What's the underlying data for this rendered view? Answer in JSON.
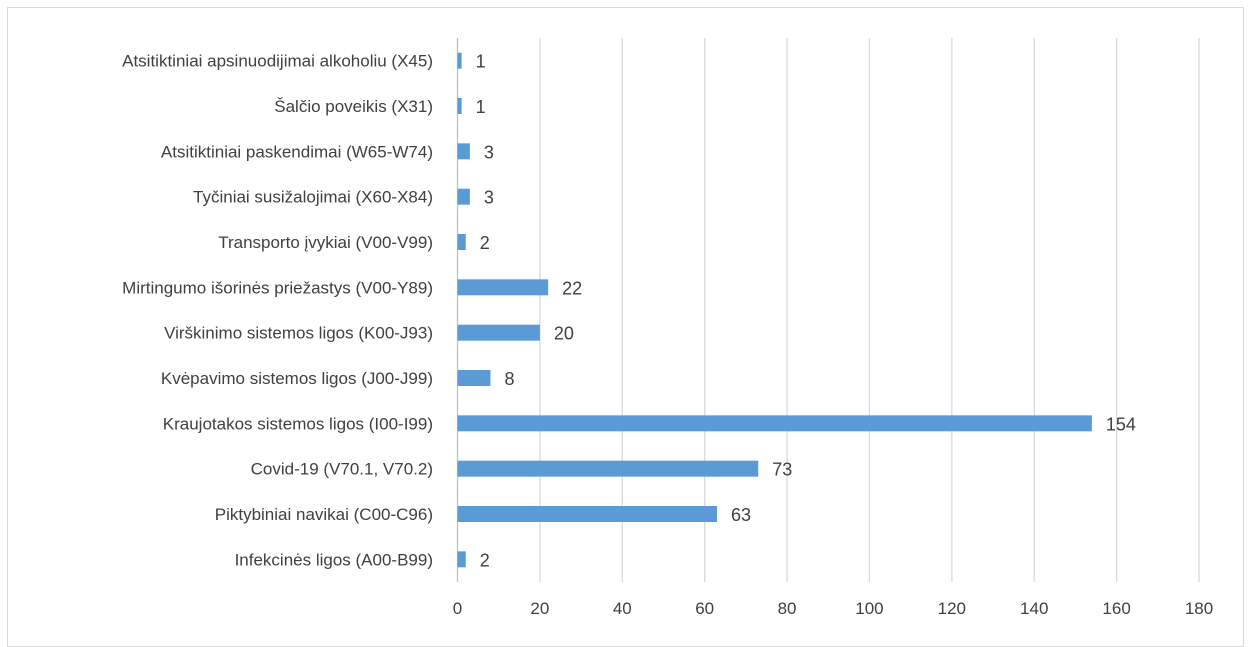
{
  "chart_data": {
    "type": "bar",
    "orientation": "horizontal",
    "title": "",
    "xlabel": "",
    "ylabel": "",
    "xlim": [
      0,
      180
    ],
    "xticks": [
      0,
      20,
      40,
      60,
      80,
      100,
      120,
      140,
      160,
      180
    ],
    "grid": true,
    "legend": "none",
    "bar_color": "#5b9bd5",
    "categories": [
      "Atsitiktiniai apsinuodijimai alkoholiu (X45)",
      "Šalčio poveikis (X31)",
      "Atsitiktiniai paskendimai (W65-W74)",
      "Tyčiniai susižalojimai (X60-X84)",
      "Transporto įvykiai (V00-V99)",
      "Mirtingumo išorinės priežastys (V00-Y89)",
      "Virškinimo sistemos ligos (K00-J93)",
      "Kvėpavimo sistemos ligos (J00-J99)",
      "Kraujotakos sistemos ligos (I00-I99)",
      "Covid-19 (V70.1, V70.2)",
      "Piktybiniai navikai (C00-C96)",
      "Infekcinės ligos (A00-B99)"
    ],
    "values": [
      1,
      1,
      3,
      3,
      2,
      22,
      20,
      8,
      154,
      73,
      63,
      2
    ]
  }
}
